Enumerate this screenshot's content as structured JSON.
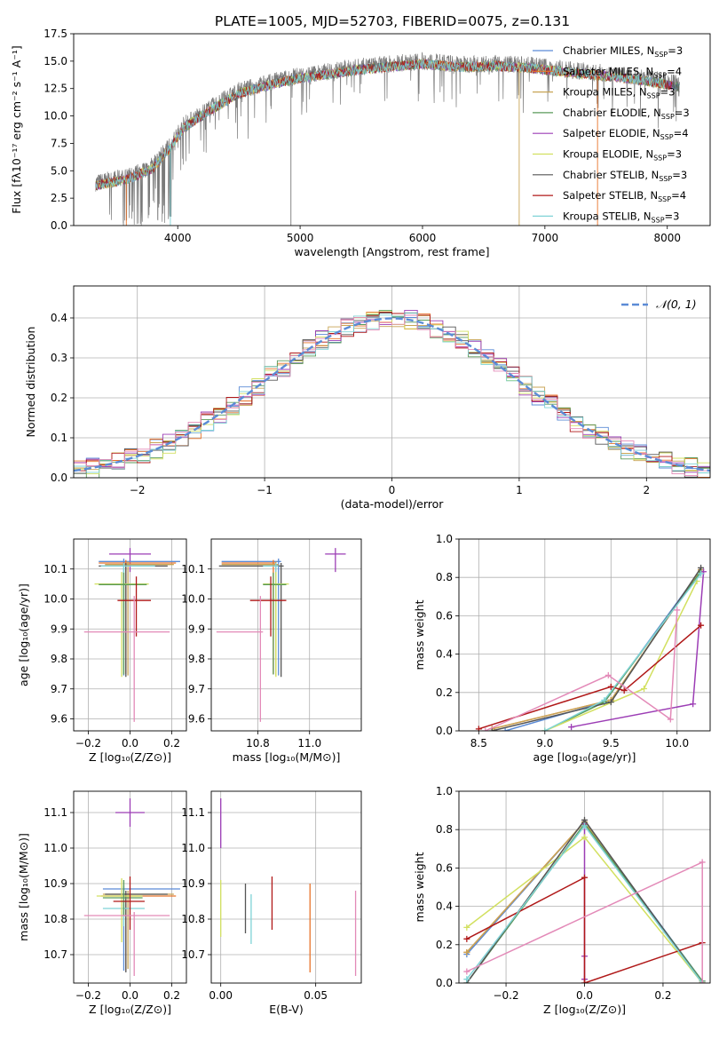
{
  "figure_title": "PLATE=1005, MJD=52703, FIBERID=0075, z=0.131",
  "chart_data": [
    {
      "id": "spectrum",
      "type": "line",
      "xlabel": "wavelength [Angstrom, rest frame]",
      "ylabel": "Flux [fλ10⁻¹⁷ erg cm⁻² s⁻¹ A⁻¹]",
      "xlim": [
        3150,
        8350
      ],
      "ylim": [
        0,
        17.5
      ],
      "xticks": [
        4000,
        5000,
        6000,
        7000,
        8000
      ],
      "yticks": [
        0,
        2.5,
        5,
        7.5,
        10,
        12.5,
        15,
        17.5
      ],
      "ytick_labels": [
        "0.0",
        "2.5",
        "5.0",
        "7.5",
        "10.0",
        "12.5",
        "15.0",
        "17.5"
      ],
      "legend_position": "right",
      "grid": false,
      "data_envelope": {
        "x": [
          3330,
          3600,
          3800,
          3950,
          4050,
          4300,
          4500,
          4800,
          5000,
          5200,
          5500,
          5800,
          6000,
          6300,
          6600,
          6900,
          7200,
          7500,
          7800,
          8100
        ],
        "y": [
          3.9,
          4.5,
          5.5,
          7.5,
          9.2,
          11.0,
          12.3,
          13.2,
          13.7,
          14.0,
          14.5,
          14.8,
          15.0,
          14.7,
          14.8,
          14.6,
          14.2,
          13.9,
          13.5,
          12.9
        ]
      },
      "series": [
        {
          "name": "Chabrier MILES, N",
          "sub": "SSP",
          "suffix": "=3",
          "color": "#5b8bd6"
        },
        {
          "name": "Salpeter MILES, N",
          "sub": "SSP",
          "suffix": "=4",
          "color": "#e8732a"
        },
        {
          "name": "Kroupa MILES, N",
          "sub": "SSP",
          "suffix": "=3",
          "color": "#c8a455"
        },
        {
          "name": "Chabrier ELODIE, N",
          "sub": "SSP",
          "suffix": "=3",
          "color": "#5a9a5a"
        },
        {
          "name": "Salpeter ELODIE, N",
          "sub": "SSP",
          "suffix": "=4",
          "color": "#9c3db5"
        },
        {
          "name": "Kroupa ELODIE, N",
          "sub": "SSP",
          "suffix": "=3",
          "color": "#d2e060"
        },
        {
          "name": "Chabrier STELIB, N",
          "sub": "SSP",
          "suffix": "=3",
          "color": "#555555"
        },
        {
          "name": "Salpeter STELIB, N",
          "sub": "SSP",
          "suffix": "=4",
          "color": "#b01818"
        },
        {
          "name": "Kroupa STELIB, N",
          "sub": "SSP",
          "suffix": "=3",
          "color": "#7fd3d6"
        }
      ]
    },
    {
      "id": "residuals",
      "type": "bar",
      "xlabel": "(data-model)/error",
      "ylabel": "Normed distribution",
      "xlim": [
        -2.5,
        2.5
      ],
      "ylim": [
        0,
        0.48
      ],
      "xticks": [
        -2,
        -1,
        0,
        1,
        2
      ],
      "xtick_labels": [
        "−2",
        "−1",
        "0",
        "1",
        "2"
      ],
      "yticks": [
        0,
        0.1,
        0.2,
        0.3,
        0.4
      ],
      "ytick_labels": [
        "0.0",
        "0.1",
        "0.2",
        "0.3",
        "0.4"
      ],
      "grid": true,
      "bins": {
        "start": -2.5,
        "width": 0.1,
        "count": 50
      },
      "reference_curve": {
        "name": "𝒩(0, 1)",
        "color": "#5b8bd6"
      },
      "legend_position": "top-right"
    },
    {
      "id": "age_vs_Z",
      "type": "scatter",
      "xlabel": "Z [log₁₀(Z/Z⊙)]",
      "ylabel": "age  [log₁₀(age/yr)]",
      "xlim": [
        -0.27,
        0.27
      ],
      "ylim": [
        9.56,
        10.2
      ],
      "xticks": [
        -0.2,
        0,
        0.2
      ],
      "xtick_labels": [
        "−0.2",
        "0.0",
        "0.2"
      ],
      "yticks": [
        9.6,
        9.7,
        9.8,
        9.9,
        10.0,
        10.1
      ],
      "ytick_labels": [
        "9.6",
        "9.7",
        "9.8",
        "9.9",
        "10.0",
        "10.1"
      ],
      "grid": true,
      "points": [
        {
          "x": 0.0,
          "y": 10.15,
          "xerr": [
            0.1,
            0.1
          ],
          "yerr": [
            0.06,
            0.02
          ],
          "color": "#9c3db5"
        },
        {
          "x": -0.03,
          "y": 10.125,
          "xerr": [
            0.12,
            0.27
          ],
          "yerr": [
            0.38,
            0.01
          ],
          "color": "#5b8bd6"
        },
        {
          "x": -0.02,
          "y": 10.12,
          "xerr": [
            0.13,
            0.24
          ],
          "yerr": [
            0.37,
            0.01
          ],
          "color": "#e8732a"
        },
        {
          "x": -0.01,
          "y": 10.115,
          "xerr": [
            0.11,
            0.22
          ],
          "yerr": [
            0.37,
            0.01
          ],
          "color": "#c8a455"
        },
        {
          "x": -0.02,
          "y": 10.11,
          "xerr": [
            0.13,
            0.2
          ],
          "yerr": [
            0.37,
            0.01
          ],
          "color": "#555555"
        },
        {
          "x": -0.03,
          "y": 10.11,
          "xerr": [
            0.11,
            0.15
          ],
          "yerr": [
            0.14,
            0.01
          ],
          "color": "#7fd3d6"
        },
        {
          "x": -0.04,
          "y": 10.05,
          "xerr": [
            0.13,
            0.13
          ],
          "yerr": [
            0.31,
            0.04
          ],
          "color": "#d2e060"
        },
        {
          "x": -0.03,
          "y": 10.048,
          "xerr": [
            0.12,
            0.11
          ],
          "yerr": [
            0.3,
            0.04
          ],
          "color": "#5a9a5a"
        },
        {
          "x": 0.03,
          "y": 9.995,
          "xerr": [
            0.09,
            0.07
          ],
          "yerr": [
            0.12,
            0.08
          ],
          "color": "#b01818"
        },
        {
          "x": 0.02,
          "y": 9.89,
          "xerr": [
            0.24,
            0.17
          ],
          "yerr": [
            0.3,
            0.12
          ],
          "color": "#e38ab8"
        }
      ]
    },
    {
      "id": "age_vs_mass",
      "type": "scatter",
      "xlabel": "mass [log₁₀(M/M⊙)]",
      "ylabel": "",
      "xlim": [
        10.62,
        11.2
      ],
      "ylim": [
        9.56,
        10.2
      ],
      "xticks": [
        10.8,
        11.0
      ],
      "xtick_labels": [
        "10.8",
        "11.0"
      ],
      "yticks": [
        9.6,
        9.7,
        9.8,
        9.9,
        10.0,
        10.1
      ],
      "ytick_labels": [
        "9.6",
        "9.7",
        "9.8",
        "9.9",
        "10.0",
        "10.1"
      ],
      "grid": true,
      "points": [
        {
          "x": 11.1,
          "y": 10.15,
          "xerr": [
            0.04,
            0.04
          ],
          "yerr": [
            0.06,
            0.02
          ],
          "color": "#9c3db5"
        },
        {
          "x": 10.88,
          "y": 10.125,
          "xerr": [
            0.22,
            0.01
          ],
          "yerr": [
            0.38,
            0.01
          ],
          "color": "#5b8bd6"
        },
        {
          "x": 10.86,
          "y": 10.12,
          "xerr": [
            0.2,
            0.01
          ],
          "yerr": [
            0.37,
            0.01
          ],
          "color": "#e8732a"
        },
        {
          "x": 10.87,
          "y": 10.115,
          "xerr": [
            0.21,
            0.01
          ],
          "yerr": [
            0.37,
            0.01
          ],
          "color": "#c8a455"
        },
        {
          "x": 10.89,
          "y": 10.11,
          "xerr": [
            0.24,
            0.01
          ],
          "yerr": [
            0.37,
            0.01
          ],
          "color": "#555555"
        },
        {
          "x": 10.87,
          "y": 10.11,
          "xerr": [
            0.05,
            0.01
          ],
          "yerr": [
            0.14,
            0.01
          ],
          "color": "#7fd3d6"
        },
        {
          "x": 10.87,
          "y": 10.05,
          "xerr": [
            0.05,
            0.05
          ],
          "yerr": [
            0.31,
            0.04
          ],
          "color": "#d2e060"
        },
        {
          "x": 10.86,
          "y": 10.048,
          "xerr": [
            0.04,
            0.05
          ],
          "yerr": [
            0.3,
            0.04
          ],
          "color": "#5a9a5a"
        },
        {
          "x": 10.85,
          "y": 9.995,
          "xerr": [
            0.08,
            0.06
          ],
          "yerr": [
            0.12,
            0.08
          ],
          "color": "#b01818"
        },
        {
          "x": 10.81,
          "y": 9.89,
          "xerr": [
            0.17,
            0.01
          ],
          "yerr": [
            0.3,
            0.12
          ],
          "color": "#e38ab8"
        }
      ]
    },
    {
      "id": "mass_weight_vs_age",
      "type": "line",
      "xlabel": "age  [log₁₀(age/yr)]",
      "ylabel": "mass weight",
      "xlim": [
        8.35,
        10.25
      ],
      "ylim": [
        0,
        1.0
      ],
      "xticks": [
        8.5,
        9.0,
        9.5,
        10.0
      ],
      "xtick_labels": [
        "8.5",
        "9.0",
        "9.5",
        "10.0"
      ],
      "yticks": [
        0,
        0.2,
        0.4,
        0.6,
        0.8,
        1.0
      ],
      "ytick_labels": [
        "0.0",
        "0.2",
        "0.4",
        "0.6",
        "0.8",
        "1.0"
      ],
      "grid": true,
      "series": [
        {
          "color": "#5b8bd6",
          "x": [
            8.7,
            9.45,
            10.18
          ],
          "y": [
            0.0,
            0.15,
            0.84
          ]
        },
        {
          "color": "#e8732a",
          "x": [
            8.6,
            9.5,
            10.18
          ],
          "y": [
            0.01,
            0.16,
            0.84
          ]
        },
        {
          "color": "#c8a455",
          "x": [
            8.6,
            9.5,
            10.18
          ],
          "y": [
            0.01,
            0.16,
            0.84
          ]
        },
        {
          "color": "#5a9a5a",
          "x": [
            9.0,
            9.45,
            10.18
          ],
          "y": [
            0.0,
            0.15,
            0.83
          ]
        },
        {
          "color": "#9c3db5",
          "x": [
            9.2,
            10.12,
            10.2
          ],
          "y": [
            0.02,
            0.14,
            0.83
          ]
        },
        {
          "color": "#d2e060",
          "x": [
            9.0,
            9.75,
            10.15
          ],
          "y": [
            0.0,
            0.22,
            0.78
          ]
        },
        {
          "color": "#555555",
          "x": [
            8.6,
            9.5,
            10.18
          ],
          "y": [
            0.0,
            0.15,
            0.85
          ]
        },
        {
          "color": "#b01818",
          "x": [
            8.5,
            9.5,
            9.6,
            10.18
          ],
          "y": [
            0.01,
            0.23,
            0.21,
            0.55
          ]
        },
        {
          "color": "#7fd3d6",
          "x": [
            9.0,
            9.45,
            10.18
          ],
          "y": [
            0.0,
            0.16,
            0.82
          ]
        },
        {
          "color": "#e38ab8",
          "x": [
            8.55,
            9.48,
            9.95,
            10.0
          ],
          "y": [
            0.0,
            0.29,
            0.06,
            0.63
          ]
        }
      ]
    },
    {
      "id": "mass_vs_Z",
      "type": "scatter",
      "xlabel": "Z [log₁₀(Z/Z⊙)]",
      "ylabel": "mass [log₁₀(M/M⊙)]",
      "xlim": [
        -0.27,
        0.27
      ],
      "ylim": [
        10.62,
        11.16
      ],
      "xticks": [
        -0.2,
        0,
        0.2
      ],
      "xtick_labels": [
        "−0.2",
        "0.0",
        "0.2"
      ],
      "yticks": [
        10.7,
        10.8,
        10.9,
        11.0,
        11.1
      ],
      "ytick_labels": [
        "10.7",
        "10.8",
        "10.9",
        "11.0",
        "11.1"
      ],
      "grid": true,
      "points": [
        {
          "x": 0.0,
          "y": 11.1,
          "xerr": [
            0.07,
            0.07
          ],
          "yerr": [
            0.04,
            0.04
          ],
          "color": "#9c3db5"
        },
        {
          "x": -0.03,
          "y": 10.885,
          "xerr": [
            0.1,
            0.27
          ],
          "yerr": [
            0.23,
            0.01
          ],
          "color": "#5b8bd6"
        },
        {
          "x": -0.02,
          "y": 10.865,
          "xerr": [
            0.12,
            0.24
          ],
          "yerr": [
            0.21,
            0.01
          ],
          "color": "#e8732a"
        },
        {
          "x": -0.01,
          "y": 10.87,
          "xerr": [
            0.12,
            0.22
          ],
          "yerr": [
            0.21,
            0.01
          ],
          "color": "#c8a455"
        },
        {
          "x": -0.02,
          "y": 10.87,
          "xerr": [
            0.1,
            0.2
          ],
          "yerr": [
            0.22,
            0.01
          ],
          "color": "#555555"
        },
        {
          "x": -0.03,
          "y": 10.83,
          "xerr": [
            0.1,
            0.1
          ],
          "yerr": [
            0.05,
            0.01
          ],
          "color": "#7fd3d6"
        },
        {
          "x": -0.04,
          "y": 10.865,
          "xerr": [
            0.12,
            0.1
          ],
          "yerr": [
            0.13,
            0.05
          ],
          "color": "#d2e060"
        },
        {
          "x": -0.03,
          "y": 10.86,
          "xerr": [
            0.1,
            0.09
          ],
          "yerr": [
            0.05,
            0.05
          ],
          "color": "#5a9a5a"
        },
        {
          "x": 0.0,
          "y": 10.85,
          "xerr": [
            0.08,
            0.07
          ],
          "yerr": [
            0.08,
            0.07
          ],
          "color": "#b01818"
        },
        {
          "x": 0.02,
          "y": 10.81,
          "xerr": [
            0.24,
            0.17
          ],
          "yerr": [
            0.17,
            0.01
          ],
          "color": "#e38ab8"
        }
      ]
    },
    {
      "id": "mass_vs_EBV",
      "type": "scatter",
      "xlabel": "E(B-V)",
      "ylabel": "",
      "xlim": [
        -0.005,
        0.074
      ],
      "ylim": [
        10.62,
        11.16
      ],
      "xticks": [
        0,
        0.05
      ],
      "xtick_labels": [
        "0.00",
        "0.05"
      ],
      "yticks": [
        10.7,
        10.8,
        10.9,
        11.0,
        11.1
      ],
      "ytick_labels": [
        "10.7",
        "10.8",
        "10.9",
        "11.0",
        "11.1"
      ],
      "grid": true,
      "points": [
        {
          "x": 0.0,
          "y": 11.05,
          "yerr": [
            0.05,
            0.09
          ],
          "color": "#9c3db5"
        },
        {
          "x": 0.0,
          "y": 10.83,
          "yerr": [
            0.08,
            0.08
          ],
          "color": "#d2e060"
        },
        {
          "x": 0.013,
          "y": 10.83,
          "yerr": [
            0.07,
            0.07
          ],
          "color": "#555555"
        },
        {
          "x": 0.016,
          "y": 10.8,
          "yerr": [
            0.07,
            0.07
          ],
          "color": "#7fd3d6"
        },
        {
          "x": 0.027,
          "y": 10.84,
          "yerr": [
            0.07,
            0.08
          ],
          "color": "#b01818"
        },
        {
          "x": 0.047,
          "y": 10.78,
          "yerr": [
            0.13,
            0.12
          ],
          "color": "#e8732a"
        },
        {
          "x": 0.071,
          "y": 10.76,
          "yerr": [
            0.12,
            0.12
          ],
          "color": "#e38ab8"
        }
      ]
    },
    {
      "id": "mass_weight_vs_Z",
      "type": "line",
      "xlabel": "Z [log₁₀(Z/Z⊙)]",
      "ylabel": "mass weight",
      "xlim": [
        -0.32,
        0.32
      ],
      "ylim": [
        0,
        1.0
      ],
      "xticks": [
        -0.2,
        0,
        0.2
      ],
      "xtick_labels": [
        "−0.2",
        "0.0",
        "0.2"
      ],
      "yticks": [
        0,
        0.2,
        0.4,
        0.6,
        0.8,
        1.0
      ],
      "ytick_labels": [
        "0.0",
        "0.2",
        "0.4",
        "0.6",
        "0.8",
        "1.0"
      ],
      "grid": true,
      "series": [
        {
          "color": "#5b8bd6",
          "x": [
            -0.3,
            0.0,
            0.3
          ],
          "y": [
            0.15,
            0.84,
            0.01
          ]
        },
        {
          "color": "#e8732a",
          "x": [
            -0.3,
            0.0,
            0.3
          ],
          "y": [
            0.16,
            0.84,
            0.0
          ]
        },
        {
          "color": "#c8a455",
          "x": [
            -0.3,
            0.0,
            0.3
          ],
          "y": [
            0.16,
            0.84,
            0.0
          ]
        },
        {
          "color": "#5a9a5a",
          "x": [
            -0.3,
            0.0,
            0.3
          ],
          "y": [
            0.0,
            0.83,
            0.01
          ]
        },
        {
          "color": "#9c3db5",
          "x": [
            0.0,
            0.0,
            0.0
          ],
          "y": [
            0.83,
            0.14,
            0.02
          ]
        },
        {
          "color": "#d2e060",
          "x": [
            -0.3,
            0.0,
            0.3
          ],
          "y": [
            0.29,
            0.76,
            0.0
          ]
        },
        {
          "color": "#555555",
          "x": [
            -0.3,
            0.0,
            0.3
          ],
          "y": [
            0.0,
            0.85,
            0.0
          ]
        },
        {
          "color": "#b01818",
          "x": [
            -0.3,
            0.0,
            0.0,
            0.3,
            0.0
          ],
          "y": [
            0.23,
            0.55,
            0.0,
            0.21,
            0.0
          ]
        },
        {
          "color": "#7fd3d6",
          "x": [
            -0.3,
            0.0,
            0.3
          ],
          "y": [
            0.02,
            0.82,
            0.0
          ]
        },
        {
          "color": "#e38ab8",
          "x": [
            -0.3,
            0.3,
            0.3
          ],
          "y": [
            0.06,
            0.63,
            0.0
          ]
        }
      ]
    }
  ]
}
